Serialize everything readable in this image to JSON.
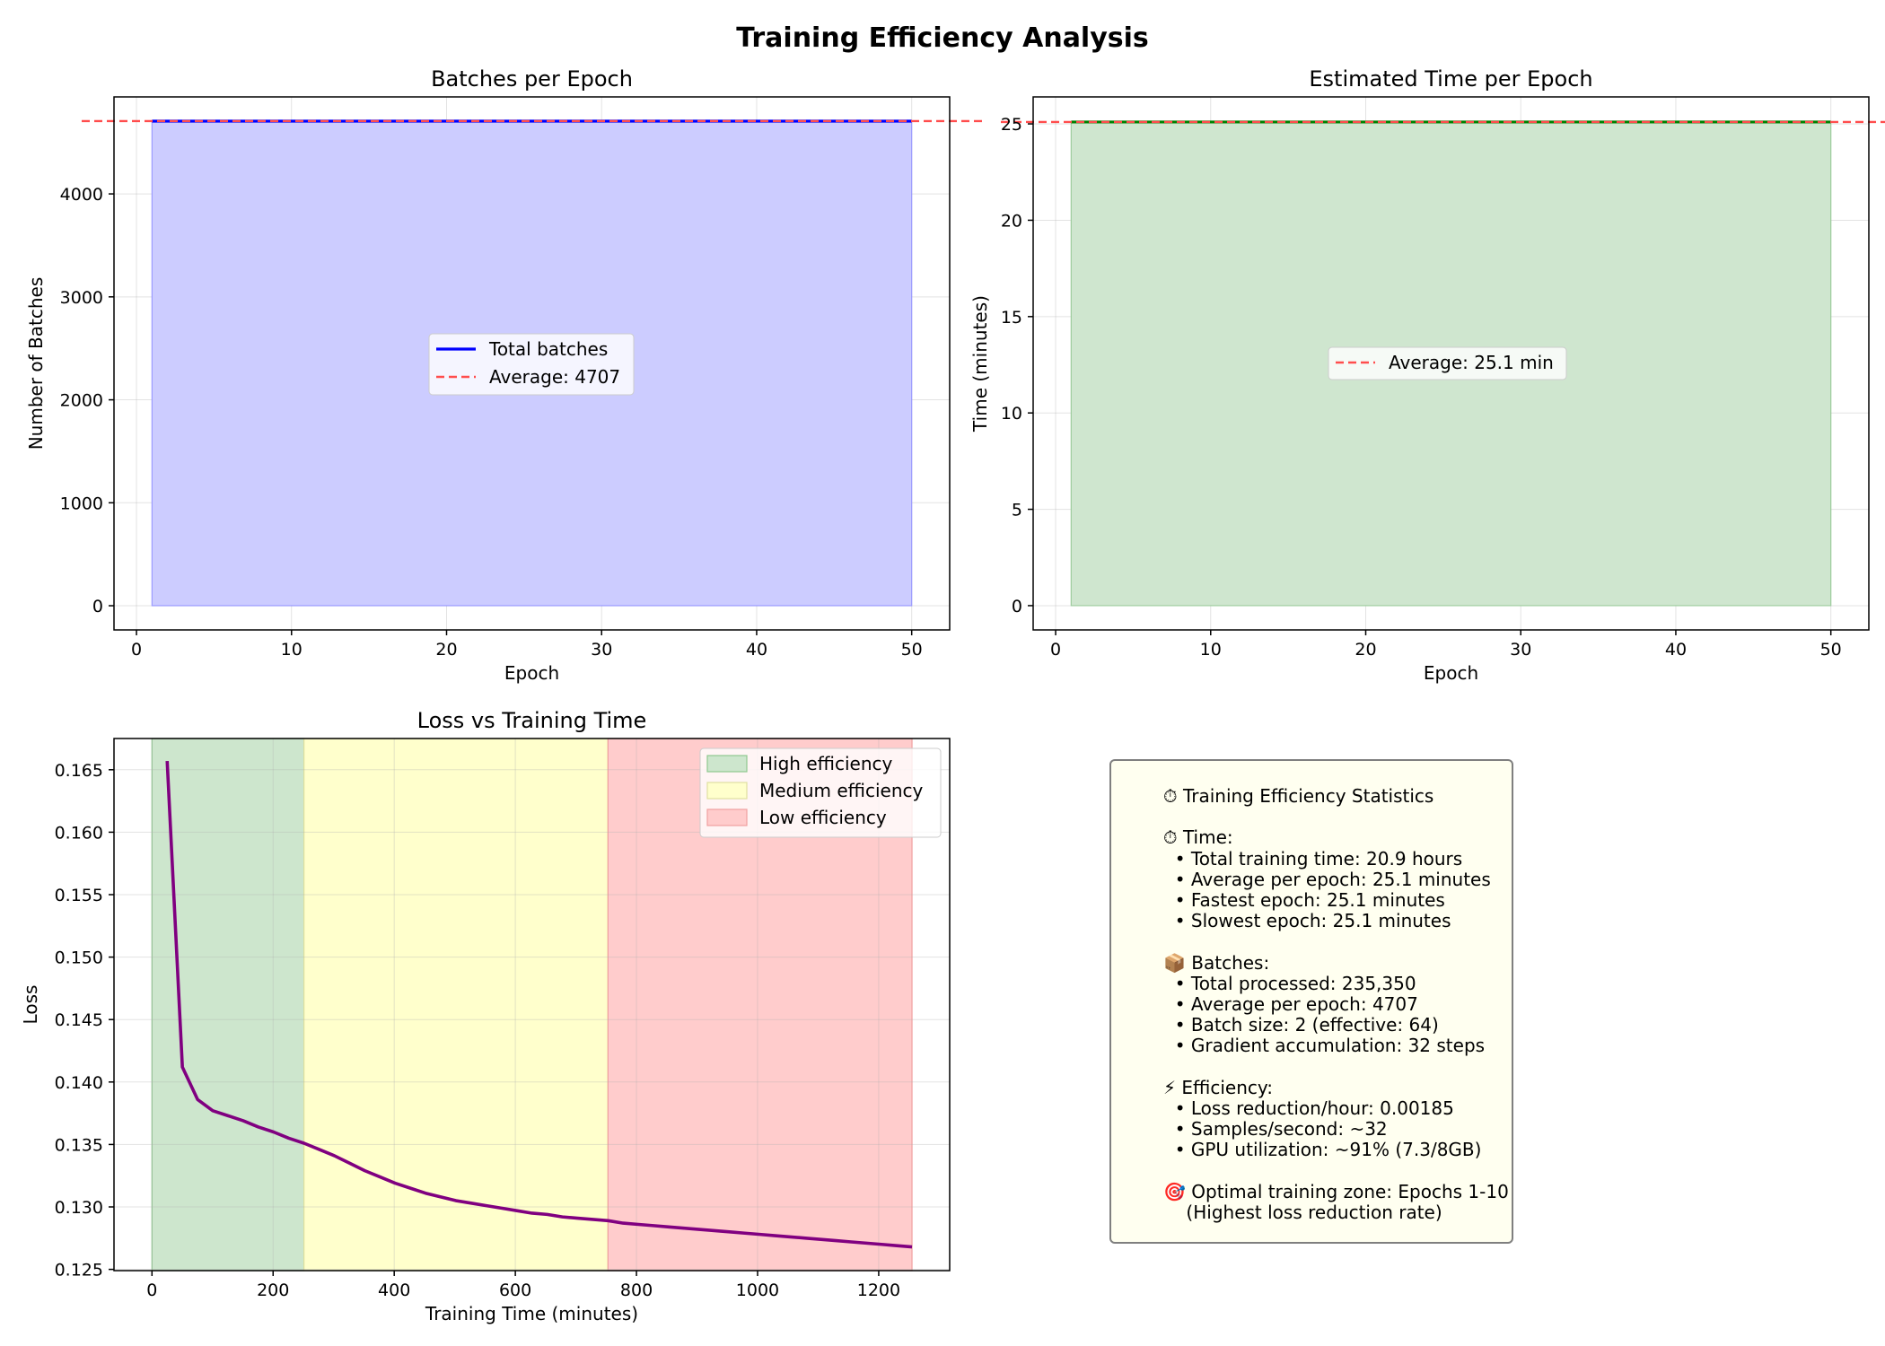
{
  "figure": {
    "title": "Training Efficiency Analysis"
  },
  "chart_data": [
    {
      "type": "area",
      "title": "Batches per Epoch",
      "xlabel": "Epoch",
      "ylabel": "Number of Batches",
      "xlim": [
        -1.45,
        52.45
      ],
      "ylim": [
        -235,
        4942
      ],
      "xticks": [
        0,
        10,
        20,
        30,
        40,
        50
      ],
      "yticks": [
        0,
        1000,
        2000,
        3000,
        4000
      ],
      "grid": true,
      "legend_position": "center",
      "colors": {
        "line": "#0000ff",
        "fill": "#ccccff",
        "average": "#ff4d4d"
      },
      "series": [
        {
          "name": "Total batches",
          "x": [
            1,
            50
          ],
          "y": [
            4707,
            4707
          ]
        }
      ],
      "reference_lines": [
        {
          "name": "Average: 4707",
          "y": 4707
        }
      ]
    },
    {
      "type": "area",
      "title": "Estimated Time per Epoch",
      "xlabel": "Epoch",
      "ylabel": "Time (minutes)",
      "xlim": [
        -1.45,
        52.45
      ],
      "ylim": [
        -1.26,
        26.4
      ],
      "xticks": [
        0,
        10,
        20,
        30,
        40,
        50
      ],
      "yticks": [
        0,
        5,
        10,
        15,
        20,
        25
      ],
      "grid": true,
      "legend_position": "center",
      "colors": {
        "line": "#008000",
        "fill": "#cfe6cf",
        "average": "#ff4d4d"
      },
      "series": [
        {
          "x": [
            1,
            50
          ],
          "y": [
            25.1,
            25.1
          ]
        }
      ],
      "reference_lines": [
        {
          "name": "Average: 25.1 min",
          "y": 25.1
        }
      ]
    },
    {
      "type": "line",
      "title": "Loss vs Training Time",
      "xlabel": "Training Time (minutes)",
      "ylabel": "Loss",
      "xlim": [
        -62.7,
        1317.2
      ],
      "ylim": [
        0.1249,
        0.1675
      ],
      "xticks": [
        0,
        200,
        400,
        600,
        800,
        1000,
        1200
      ],
      "yticks": [
        0.125,
        0.13,
        0.135,
        0.14,
        0.145,
        0.15,
        0.155,
        0.16,
        0.165
      ],
      "grid": true,
      "legend_position": "upper right",
      "colors": {
        "line": "#800080"
      },
      "regions": [
        {
          "name": "High efficiency",
          "x0": 0,
          "x1": 251,
          "color": "#cde6cd",
          "edge": "#8fc98f"
        },
        {
          "name": "Medium efficiency",
          "x0": 251,
          "x1": 753,
          "color": "#ffffcc",
          "edge": "#e0e0a0"
        },
        {
          "name": "Low efficiency",
          "x0": 753,
          "x1": 1255,
          "color": "#ffcccc",
          "edge": "#f0a0a0"
        }
      ],
      "series": [
        {
          "x": [
            25.1,
            50.2,
            75.3,
            100.4,
            125.5,
            150.6,
            175.7,
            200.8,
            225.9,
            251,
            276.1,
            301.2,
            326.3,
            351.4,
            376.5,
            401.6,
            426.7,
            451.8,
            476.9,
            502,
            527.1,
            552.2,
            577.3,
            602.4,
            627.5,
            652.6,
            677.7,
            702.8,
            727.9,
            753,
            778.1,
            803.2,
            828.3,
            853.4,
            878.5,
            903.6,
            928.7,
            953.8,
            978.9,
            1004,
            1029.1,
            1054.2,
            1079.3,
            1104.4,
            1129.5,
            1154.6,
            1179.7,
            1204.8,
            1229.9,
            1255
          ],
          "y": [
            0.1657,
            0.1412,
            0.1386,
            0.1377,
            0.1373,
            0.1369,
            0.1364,
            0.136,
            0.1355,
            0.1351,
            0.1346,
            0.1341,
            0.1335,
            0.1329,
            0.1324,
            0.1319,
            0.1315,
            0.1311,
            0.1308,
            0.1305,
            0.1303,
            0.1301,
            0.1299,
            0.1297,
            0.1295,
            0.1294,
            0.1292,
            0.1291,
            0.129,
            0.1289,
            0.1287,
            0.1286,
            0.1285,
            0.1284,
            0.1283,
            0.1282,
            0.1281,
            0.128,
            0.1279,
            0.1278,
            0.1277,
            0.1276,
            0.1275,
            0.1274,
            0.1273,
            0.1272,
            0.1271,
            0.127,
            0.1269,
            0.1268
          ]
        }
      ]
    }
  ],
  "stats_panel": {
    "text": "⏱ Training Efficiency Statistics\n\n⏱ Time:\n  • Total training time: 20.9 hours\n  • Average per epoch: 25.1 minutes\n  • Fastest epoch: 25.1 minutes\n  • Slowest epoch: 25.1 minutes\n\n📦 Batches:\n  • Total processed: 235,350\n  • Average per epoch: 4707\n  • Batch size: 2 (effective: 64)\n  • Gradient accumulation: 32 steps\n\n⚡ Efficiency:\n  • Loss reduction/hour: 0.00185\n  • Samples/second: ~32\n  • GPU utilization: ~91% (7.3/8GB)\n\n🎯 Optimal training zone: Epochs 1-10\n    (Highest loss reduction rate)",
    "colors": {
      "background": "#fffff0",
      "border": "#7f7f7f"
    }
  }
}
